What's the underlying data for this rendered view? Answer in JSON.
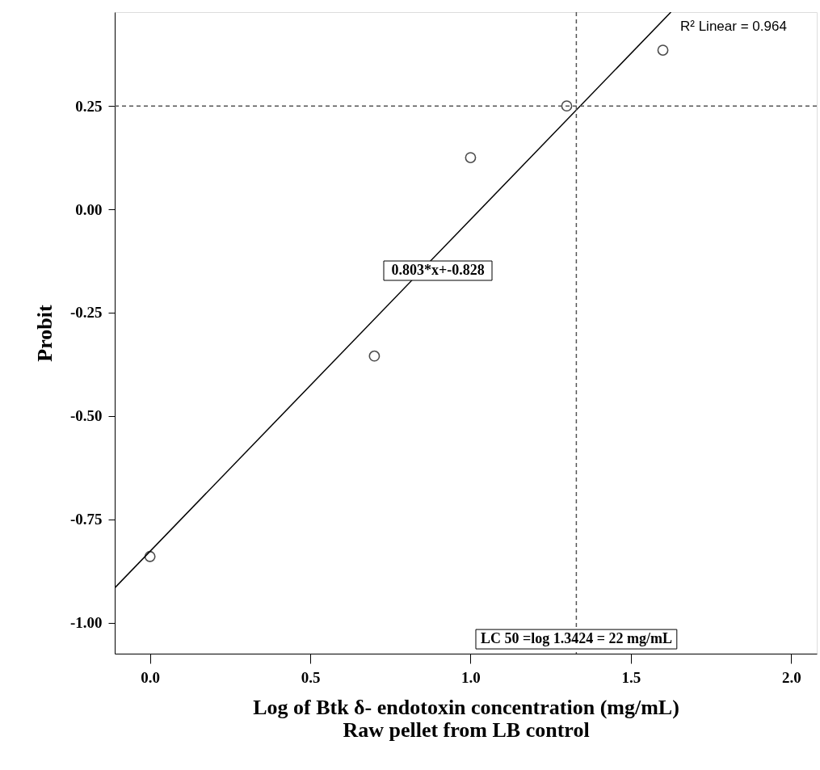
{
  "chart_data": {
    "type": "scatter",
    "xlabel": "Log of Btk δ- endotoxin concentration (mg/mL)\nRaw pellet from LB control",
    "ylabel": "Probit",
    "xlim": [
      -0.11,
      2.08
    ],
    "ylim": [
      -1.075,
      0.477
    ],
    "xticks": [
      {
        "value": 0,
        "label": "0.0"
      },
      {
        "value": 0.5,
        "label": "0.5"
      },
      {
        "value": 1,
        "label": "1.0"
      },
      {
        "value": 1.5,
        "label": "1.5"
      },
      {
        "value": 2,
        "label": "2.0"
      }
    ],
    "yticks": [
      {
        "value": -1,
        "label": "-1.00"
      },
      {
        "value": -0.75,
        "label": "-0.75"
      },
      {
        "value": -0.5,
        "label": "-0.50"
      },
      {
        "value": -0.25,
        "label": "-0.25"
      },
      {
        "value": 0,
        "label": "0.00"
      },
      {
        "value": 0.25,
        "label": "0.25"
      }
    ],
    "grid": false,
    "series": [
      {
        "color": "#000000",
        "marker": "circle",
        "x": [
          0,
          0.7,
          1.0,
          1.3,
          1.6
        ],
        "values": [
          -0.84,
          -0.355,
          0.125,
          0.25,
          0.385
        ]
      },
      {
        "type": "line",
        "color": "#000000",
        "line_style": "solid",
        "marker": "none",
        "x": [
          -0.11,
          1.625
        ],
        "values": [
          -0.916,
          0.477
        ]
      }
    ],
    "ref_lines": [
      {
        "axis": "y",
        "value": 0.25,
        "line_style": "dashed",
        "color": "#555555"
      },
      {
        "axis": "x",
        "value": 1.33,
        "line_style": "dashed",
        "color": "#555555"
      }
    ],
    "annotations": [
      "R² Linear = 0.964",
      "0.803*x+-0.828",
      {
        "text": "LC 50 =log 1.3424 = 22 mg/mL",
        "x": 1.33,
        "y": -1.04
      }
    ]
  }
}
